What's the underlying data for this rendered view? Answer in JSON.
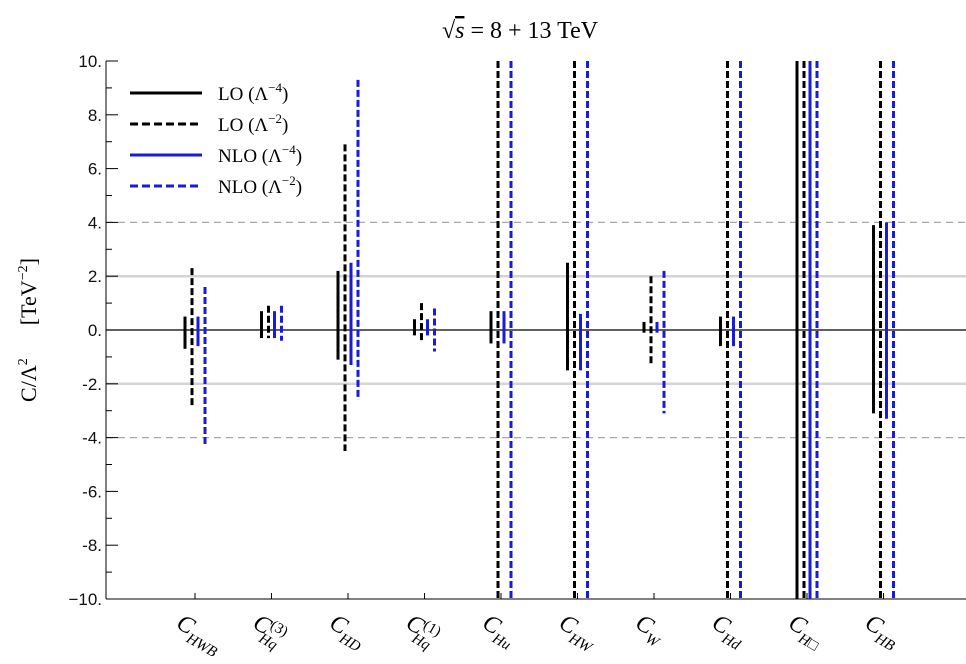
{
  "chart_data": {
    "type": "error-bar",
    "title": "√s = 8 + 13 TeV",
    "title_parts": {
      "sqrt": "√",
      "var": "s",
      "rest": " = 8 + 13 TeV"
    },
    "ylabel": "C/Λ²    [TeV⁻²]",
    "ylabel_parts": {
      "a": "C/Λ",
      "a_sup": "2",
      "b": "[TeV",
      "b_sup": "−2",
      "b_end": "]"
    },
    "ylim": [
      -10,
      10
    ],
    "yticks": [
      {
        "value": 10,
        "label": "10."
      },
      {
        "value": 8,
        "label": "8."
      },
      {
        "value": 6,
        "label": "6."
      },
      {
        "value": 4,
        "label": "4."
      },
      {
        "value": 2,
        "label": "2."
      },
      {
        "value": 0,
        "label": "0."
      },
      {
        "value": -2,
        "label": "-2."
      },
      {
        "value": -4,
        "label": "-4."
      },
      {
        "value": -6,
        "label": "-6."
      },
      {
        "value": -8,
        "label": "-8."
      },
      {
        "value": -10,
        "label": "−10."
      }
    ],
    "hlines": {
      "solid_gray": [
        2,
        -2
      ],
      "dashed_gray": [
        4,
        -4
      ],
      "zero": 0
    },
    "legend_position": "top-left",
    "series": [
      {
        "name": "LO (Λ⁻⁴)",
        "label_base": "LO (Λ",
        "label_sup": "−4",
        "color": "#000000",
        "dash": false
      },
      {
        "name": "LO (Λ⁻²)",
        "label_base": "LO (Λ",
        "label_sup": "−2",
        "color": "#000000",
        "dash": true
      },
      {
        "name": "NLO (Λ⁻⁴)",
        "label_base": "NLO (Λ",
        "label_sup": "−4",
        "color": "#1a1adb",
        "dash": false
      },
      {
        "name": "NLO (Λ⁻²)",
        "label_base": "NLO (Λ",
        "label_sup": "−2",
        "color": "#1a1adb",
        "dash": true
      }
    ],
    "categories": [
      {
        "main": "C",
        "sub": "HWB",
        "sup": "",
        "intervals": [
          [
            -0.7,
            0.5
          ],
          [
            -2.9,
            2.3
          ],
          [
            -0.6,
            0.5
          ],
          [
            -4.3,
            1.6
          ]
        ]
      },
      {
        "main": "C",
        "sub": "Hq",
        "sup": "(3)",
        "intervals": [
          [
            -0.3,
            0.7
          ],
          [
            -0.3,
            0.9
          ],
          [
            -0.3,
            0.7
          ],
          [
            -0.4,
            0.9
          ]
        ]
      },
      {
        "main": "C",
        "sub": "HD",
        "sup": "",
        "intervals": [
          [
            -1.1,
            2.2
          ],
          [
            -4.5,
            6.9
          ],
          [
            -1.3,
            2.5
          ],
          [
            -2.6,
            9.3
          ]
        ]
      },
      {
        "main": "C",
        "sub": "Hq",
        "sup": "(1)",
        "intervals": [
          [
            -0.2,
            0.4
          ],
          [
            -0.4,
            1.0
          ],
          [
            -0.2,
            0.4
          ],
          [
            -0.8,
            0.8
          ]
        ]
      },
      {
        "main": "C",
        "sub": "Hu",
        "sup": "",
        "intervals": [
          [
            -0.5,
            0.7
          ],
          [
            -10,
            10
          ],
          [
            -0.5,
            0.7
          ],
          [
            -10,
            10
          ]
        ]
      },
      {
        "main": "C",
        "sub": "HW",
        "sup": "",
        "intervals": [
          [
            -1.5,
            2.5
          ],
          [
            -10,
            10
          ],
          [
            -1.5,
            0.6
          ],
          [
            -10,
            10
          ]
        ]
      },
      {
        "main": "C",
        "sub": "W",
        "sup": "",
        "intervals": [
          [
            -0.1,
            0.3
          ],
          [
            -1.3,
            2.0
          ],
          [
            -0.1,
            0.3
          ],
          [
            -3.1,
            2.2
          ]
        ]
      },
      {
        "main": "C",
        "sub": "Hd",
        "sup": "",
        "intervals": [
          [
            -0.6,
            0.5
          ],
          [
            -10,
            10
          ],
          [
            -0.6,
            0.5
          ],
          [
            -10,
            10
          ]
        ]
      },
      {
        "main": "C",
        "sub": "H□",
        "sup": "",
        "intervals": [
          [
            -10,
            10
          ],
          [
            -10,
            10
          ],
          [
            -10,
            10
          ],
          [
            -10,
            10
          ]
        ]
      },
      {
        "main": "C",
        "sub": "HB",
        "sup": "",
        "intervals": [
          [
            -3.1,
            3.9
          ],
          [
            -10,
            10
          ],
          [
            -3.3,
            4.0
          ],
          [
            -10,
            10
          ]
        ]
      }
    ]
  }
}
